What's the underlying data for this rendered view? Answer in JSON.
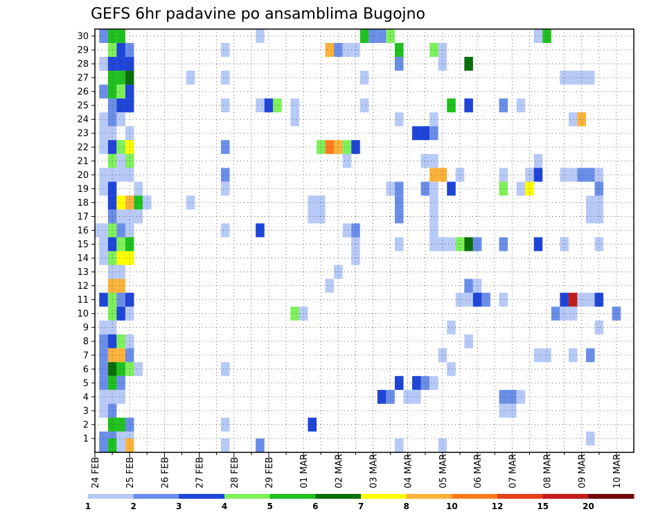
{
  "chart_data": {
    "type": "heatmap",
    "title": "GEFS 6hr padavine po ansamblima Bugojno",
    "xlabel": "",
    "ylabel": "",
    "x_tick_labels": [
      "24 FEB",
      "25 FEB",
      "26 FEB",
      "27 FEB",
      "28 FEB",
      "29 FEB",
      "01 MAR",
      "02 MAR",
      "03 MAR",
      "04 MAR",
      "05 MAR",
      "06 MAR",
      "07 MAR",
      "08 MAR",
      "09 MAR",
      "10 MAR"
    ],
    "y_tick_labels": [
      "1",
      "2",
      "3",
      "4",
      "5",
      "6",
      "7",
      "8",
      "9",
      "10",
      "11",
      "12",
      "13",
      "14",
      "15",
      "16",
      "17",
      "18",
      "19",
      "20",
      "21",
      "22",
      "23",
      "24",
      "25",
      "26",
      "27",
      "28",
      "29",
      "30"
    ],
    "x_range": [
      0,
      15.5
    ],
    "y_range": [
      0,
      30.5
    ],
    "grid": true,
    "colorbar": {
      "labels": [
        "1",
        "2",
        "3",
        "4",
        "5",
        "6",
        "7",
        "8",
        "10",
        "12",
        "15",
        "20"
      ],
      "colors": [
        "#b7c9f7",
        "#6a8ee8",
        "#1f45d8",
        "#7ef05a",
        "#1fc01f",
        "#0a6e0a",
        "#ffff00",
        "#fbb23a",
        "#ff7c1e",
        "#e84018",
        "#c31a1a",
        "#6e0a0a"
      ]
    },
    "cells_note_levels": "each cell: [x_day_index, member, level_index]",
    "cells": [
      [
        0.25,
        30,
        1
      ],
      [
        0.5,
        30,
        4
      ],
      [
        0.75,
        30,
        4
      ],
      [
        4.75,
        30,
        0
      ],
      [
        7.75,
        30,
        4
      ],
      [
        8.0,
        30,
        1
      ],
      [
        8.25,
        30,
        1
      ],
      [
        8.5,
        30,
        3
      ],
      [
        12.75,
        30,
        0
      ],
      [
        13.0,
        30,
        4
      ],
      [
        0.5,
        29,
        3
      ],
      [
        0.75,
        29,
        2
      ],
      [
        1.0,
        29,
        1
      ],
      [
        3.75,
        29,
        0
      ],
      [
        6.75,
        29,
        7
      ],
      [
        7.0,
        29,
        1
      ],
      [
        7.25,
        29,
        0
      ],
      [
        7.5,
        29,
        0
      ],
      [
        8.75,
        29,
        4
      ],
      [
        9.75,
        29,
        3
      ],
      [
        10.0,
        29,
        0
      ],
      [
        0.25,
        28,
        0
      ],
      [
        0.5,
        28,
        2
      ],
      [
        0.75,
        28,
        2
      ],
      [
        1.0,
        28,
        2
      ],
      [
        8.75,
        28,
        1
      ],
      [
        10.0,
        28,
        0
      ],
      [
        10.75,
        28,
        5
      ],
      [
        0.5,
        27,
        4
      ],
      [
        0.75,
        27,
        4
      ],
      [
        1.0,
        27,
        5
      ],
      [
        2.75,
        27,
        0
      ],
      [
        3.75,
        27,
        0
      ],
      [
        7.75,
        27,
        0
      ],
      [
        13.5,
        27,
        0
      ],
      [
        13.75,
        27,
        0
      ],
      [
        14.0,
        27,
        0
      ],
      [
        14.25,
        27,
        0
      ],
      [
        0.25,
        26,
        1
      ],
      [
        0.5,
        26,
        4
      ],
      [
        0.75,
        26,
        3
      ],
      [
        1.0,
        26,
        2
      ],
      [
        0.5,
        25,
        1
      ],
      [
        0.75,
        25,
        2
      ],
      [
        1.0,
        25,
        2
      ],
      [
        3.75,
        25,
        0
      ],
      [
        4.75,
        25,
        0
      ],
      [
        5.0,
        25,
        2
      ],
      [
        5.25,
        25,
        3
      ],
      [
        5.75,
        25,
        0
      ],
      [
        7.75,
        25,
        0
      ],
      [
        10.25,
        25,
        4
      ],
      [
        10.75,
        25,
        2
      ],
      [
        11.75,
        25,
        1
      ],
      [
        12.25,
        25,
        0
      ],
      [
        0.25,
        24,
        0
      ],
      [
        0.5,
        24,
        1
      ],
      [
        0.75,
        24,
        0
      ],
      [
        5.75,
        24,
        0
      ],
      [
        8.75,
        24,
        0
      ],
      [
        9.75,
        24,
        0
      ],
      [
        13.75,
        24,
        0
      ],
      [
        14.0,
        24,
        7
      ],
      [
        0.25,
        23,
        0
      ],
      [
        0.5,
        23,
        0
      ],
      [
        1.0,
        23,
        0
      ],
      [
        9.25,
        23,
        2
      ],
      [
        9.5,
        23,
        2
      ],
      [
        9.75,
        23,
        1
      ],
      [
        0.25,
        22,
        0
      ],
      [
        0.5,
        22,
        2
      ],
      [
        0.75,
        22,
        3
      ],
      [
        1.0,
        22,
        6
      ],
      [
        3.75,
        22,
        1
      ],
      [
        6.5,
        22,
        3
      ],
      [
        6.75,
        22,
        8
      ],
      [
        7.0,
        22,
        7
      ],
      [
        7.25,
        22,
        3
      ],
      [
        7.5,
        22,
        2
      ],
      [
        0.5,
        21,
        3
      ],
      [
        0.75,
        21,
        0
      ],
      [
        1.0,
        21,
        3
      ],
      [
        7.25,
        21,
        0
      ],
      [
        9.5,
        21,
        0
      ],
      [
        9.75,
        21,
        0
      ],
      [
        12.75,
        21,
        0
      ],
      [
        0.25,
        20,
        0
      ],
      [
        0.5,
        20,
        0
      ],
      [
        0.75,
        20,
        0
      ],
      [
        1.0,
        20,
        0
      ],
      [
        3.75,
        20,
        1
      ],
      [
        9.75,
        20,
        7
      ],
      [
        10.0,
        20,
        7
      ],
      [
        10.5,
        20,
        0
      ],
      [
        11.75,
        20,
        0
      ],
      [
        12.5,
        20,
        0
      ],
      [
        12.75,
        20,
        2
      ],
      [
        13.5,
        20,
        0
      ],
      [
        13.75,
        20,
        0
      ],
      [
        14.0,
        20,
        1
      ],
      [
        14.25,
        20,
        1
      ],
      [
        14.5,
        20,
        0
      ],
      [
        0.25,
        19,
        0
      ],
      [
        0.5,
        19,
        2
      ],
      [
        1.25,
        19,
        0
      ],
      [
        3.75,
        19,
        0
      ],
      [
        8.5,
        19,
        0
      ],
      [
        8.75,
        19,
        1
      ],
      [
        9.5,
        19,
        1
      ],
      [
        9.75,
        19,
        0
      ],
      [
        10.25,
        19,
        2
      ],
      [
        11.75,
        19,
        3
      ],
      [
        12.25,
        19,
        0
      ],
      [
        12.5,
        19,
        6
      ],
      [
        14.5,
        19,
        1
      ],
      [
        0.5,
        18,
        2
      ],
      [
        0.75,
        18,
        6
      ],
      [
        1.0,
        18,
        7
      ],
      [
        1.25,
        18,
        4
      ],
      [
        1.5,
        18,
        0
      ],
      [
        2.75,
        18,
        0
      ],
      [
        6.25,
        18,
        0
      ],
      [
        6.5,
        18,
        0
      ],
      [
        8.75,
        18,
        1
      ],
      [
        9.75,
        18,
        0
      ],
      [
        14.25,
        18,
        0
      ],
      [
        14.5,
        18,
        0
      ],
      [
        0.5,
        17,
        1
      ],
      [
        0.75,
        17,
        0
      ],
      [
        1.0,
        17,
        0
      ],
      [
        1.25,
        17,
        0
      ],
      [
        6.25,
        17,
        0
      ],
      [
        6.5,
        17,
        0
      ],
      [
        8.75,
        17,
        1
      ],
      [
        9.75,
        17,
        0
      ],
      [
        14.25,
        17,
        0
      ],
      [
        14.5,
        17,
        0
      ],
      [
        0.0,
        16,
        0
      ],
      [
        0.25,
        16,
        0
      ],
      [
        0.5,
        16,
        3
      ],
      [
        0.75,
        16,
        1
      ],
      [
        1.0,
        16,
        0
      ],
      [
        3.75,
        16,
        0
      ],
      [
        4.75,
        16,
        2
      ],
      [
        7.25,
        16,
        0
      ],
      [
        7.5,
        16,
        1
      ],
      [
        9.75,
        16,
        0
      ],
      [
        0.25,
        15,
        0
      ],
      [
        0.5,
        15,
        2
      ],
      [
        0.75,
        15,
        3
      ],
      [
        1.0,
        15,
        4
      ],
      [
        7.5,
        15,
        0
      ],
      [
        8.75,
        15,
        0
      ],
      [
        9.75,
        15,
        0
      ],
      [
        10.0,
        15,
        0
      ],
      [
        10.25,
        15,
        0
      ],
      [
        10.5,
        15,
        3
      ],
      [
        10.75,
        15,
        5
      ],
      [
        11.0,
        15,
        1
      ],
      [
        11.75,
        15,
        1
      ],
      [
        12.75,
        15,
        2
      ],
      [
        13.5,
        15,
        0
      ],
      [
        14.5,
        15,
        0
      ],
      [
        0.25,
        14,
        0
      ],
      [
        0.5,
        14,
        3
      ],
      [
        0.75,
        14,
        6
      ],
      [
        1.0,
        14,
        6
      ],
      [
        7.5,
        14,
        0
      ],
      [
        0.5,
        13,
        0
      ],
      [
        0.75,
        13,
        0
      ],
      [
        7.0,
        13,
        0
      ],
      [
        0.5,
        12,
        7
      ],
      [
        0.75,
        12,
        7
      ],
      [
        6.75,
        12,
        0
      ],
      [
        10.75,
        12,
        1
      ],
      [
        11.0,
        12,
        0
      ],
      [
        0.25,
        11,
        2
      ],
      [
        0.5,
        11,
        3
      ],
      [
        0.75,
        11,
        1
      ],
      [
        1.0,
        11,
        2
      ],
      [
        10.5,
        11,
        0
      ],
      [
        10.75,
        11,
        0
      ],
      [
        11.0,
        11,
        2
      ],
      [
        11.25,
        11,
        1
      ],
      [
        11.75,
        11,
        0
      ],
      [
        13.5,
        11,
        2
      ],
      [
        13.75,
        11,
        10
      ],
      [
        14.0,
        11,
        0
      ],
      [
        14.25,
        11,
        0
      ],
      [
        14.5,
        11,
        2
      ],
      [
        0.5,
        10,
        3
      ],
      [
        0.75,
        10,
        2
      ],
      [
        1.0,
        10,
        0
      ],
      [
        5.75,
        10,
        3
      ],
      [
        6.0,
        10,
        0
      ],
      [
        13.25,
        10,
        1
      ],
      [
        13.5,
        10,
        0
      ],
      [
        13.75,
        10,
        0
      ],
      [
        15.0,
        10,
        1
      ],
      [
        0.25,
        9,
        0
      ],
      [
        0.5,
        9,
        0
      ],
      [
        10.25,
        9,
        0
      ],
      [
        14.5,
        9,
        0
      ],
      [
        0.25,
        8,
        1
      ],
      [
        0.5,
        8,
        2
      ],
      [
        0.75,
        8,
        3
      ],
      [
        1.0,
        8,
        0
      ],
      [
        10.75,
        8,
        0
      ],
      [
        0.25,
        7,
        1
      ],
      [
        0.5,
        7,
        7
      ],
      [
        0.75,
        7,
        7
      ],
      [
        1.0,
        7,
        1
      ],
      [
        10.0,
        7,
        0
      ],
      [
        12.75,
        7,
        0
      ],
      [
        13.0,
        7,
        0
      ],
      [
        13.75,
        7,
        0
      ],
      [
        14.25,
        7,
        1
      ],
      [
        0.25,
        6,
        1
      ],
      [
        0.5,
        6,
        5
      ],
      [
        0.75,
        6,
        4
      ],
      [
        1.0,
        6,
        3
      ],
      [
        1.25,
        6,
        0
      ],
      [
        3.75,
        6,
        0
      ],
      [
        10.25,
        6,
        0
      ],
      [
        0.25,
        5,
        1
      ],
      [
        0.5,
        5,
        4
      ],
      [
        0.75,
        5,
        1
      ],
      [
        8.75,
        5,
        2
      ],
      [
        9.25,
        5,
        2
      ],
      [
        9.5,
        5,
        1
      ],
      [
        9.75,
        5,
        0
      ],
      [
        0.25,
        4,
        0
      ],
      [
        0.5,
        4,
        0
      ],
      [
        0.75,
        4,
        0
      ],
      [
        8.25,
        4,
        2
      ],
      [
        8.5,
        4,
        1
      ],
      [
        9.0,
        4,
        0
      ],
      [
        9.25,
        4,
        0
      ],
      [
        11.75,
        4,
        1
      ],
      [
        12.0,
        4,
        1
      ],
      [
        12.25,
        4,
        0
      ],
      [
        0.25,
        3,
        0
      ],
      [
        0.5,
        3,
        1
      ],
      [
        11.75,
        3,
        0
      ],
      [
        12.0,
        3,
        0
      ],
      [
        0.5,
        2,
        4
      ],
      [
        0.75,
        2,
        4
      ],
      [
        1.0,
        2,
        1
      ],
      [
        3.75,
        2,
        0
      ],
      [
        6.25,
        2,
        2
      ],
      [
        0.25,
        1,
        1
      ],
      [
        0.5,
        1,
        1
      ],
      [
        0.75,
        1,
        0
      ],
      [
        1.0,
        1,
        0
      ],
      [
        14.25,
        1,
        0
      ],
      [
        0.25,
        0.5,
        1
      ],
      [
        0.5,
        0.5,
        4
      ],
      [
        0.75,
        0.5,
        0
      ],
      [
        1.0,
        0.5,
        7
      ],
      [
        3.75,
        0.5,
        0
      ],
      [
        4.75,
        0.5,
        1
      ],
      [
        8.75,
        0.5,
        0
      ],
      [
        10.0,
        0.5,
        0
      ]
    ]
  }
}
